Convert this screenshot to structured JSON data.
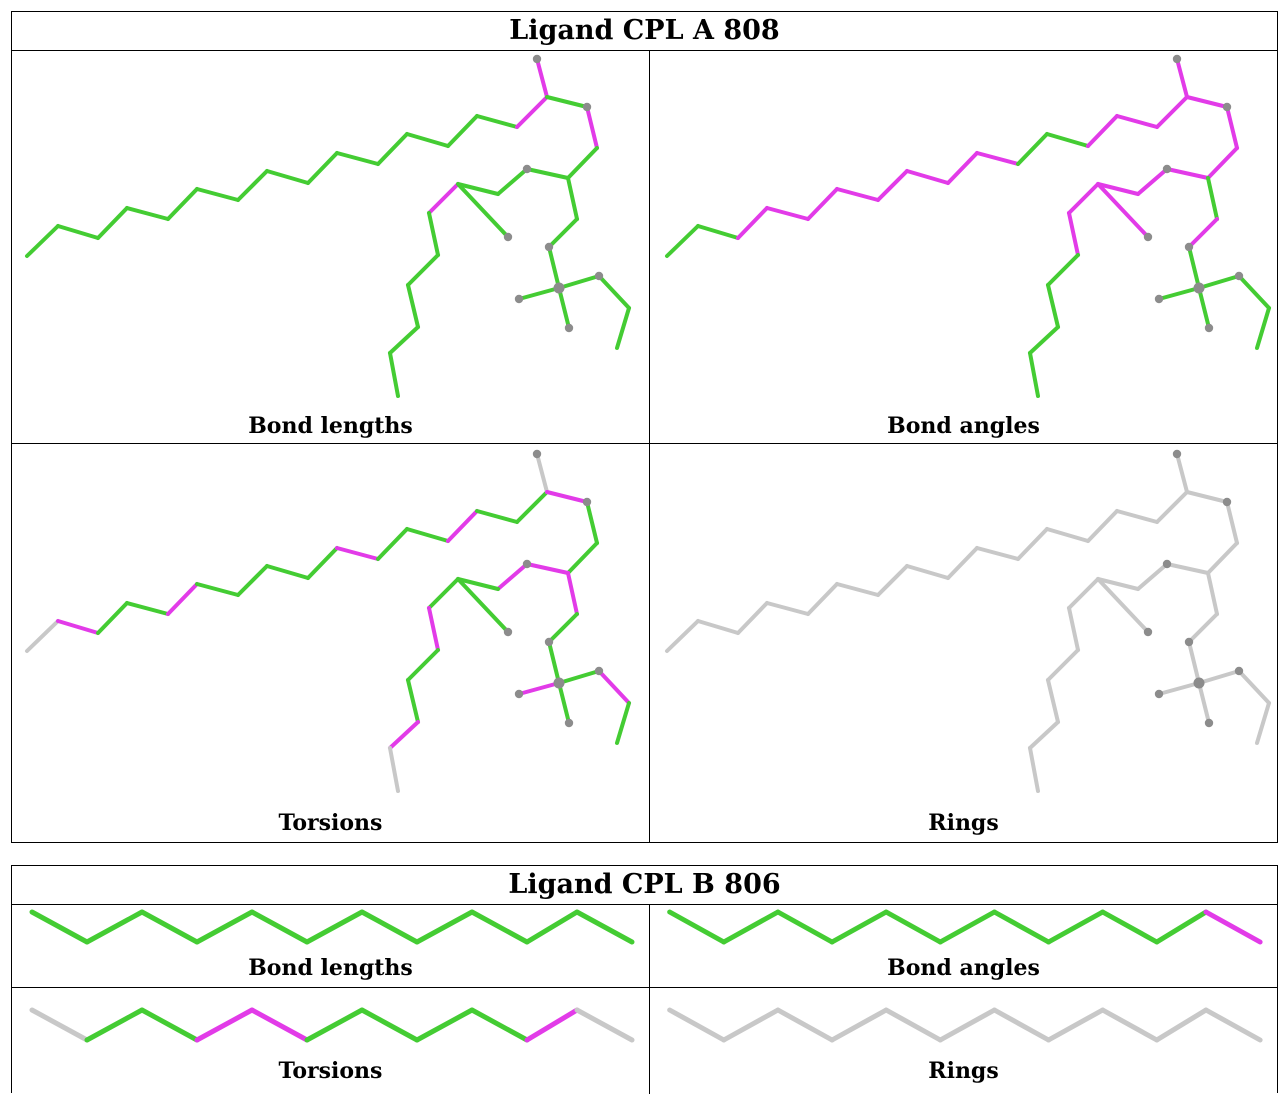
{
  "colors": {
    "good": "#44cc33",
    "outlier": "#e23be8",
    "neutral": "#c8c8c8",
    "atom": "#8c8c8c"
  },
  "ligands": [
    {
      "title": "Ligand CPL A 808",
      "panels": [
        {
          "label": "Bond lengths",
          "mode": "lengths"
        },
        {
          "label": "Bond angles",
          "mode": "angles"
        },
        {
          "label": "Torsions",
          "mode": "torsions"
        },
        {
          "label": "Rings",
          "mode": "rings"
        }
      ]
    },
    {
      "title": "Ligand CPL B 806",
      "panels": [
        {
          "label": "Bond lengths",
          "mode": "lengths"
        },
        {
          "label": "Bond angles",
          "mode": "angles"
        },
        {
          "label": "Torsions",
          "mode": "torsions"
        },
        {
          "label": "Rings",
          "mode": "rings"
        }
      ]
    }
  ]
}
